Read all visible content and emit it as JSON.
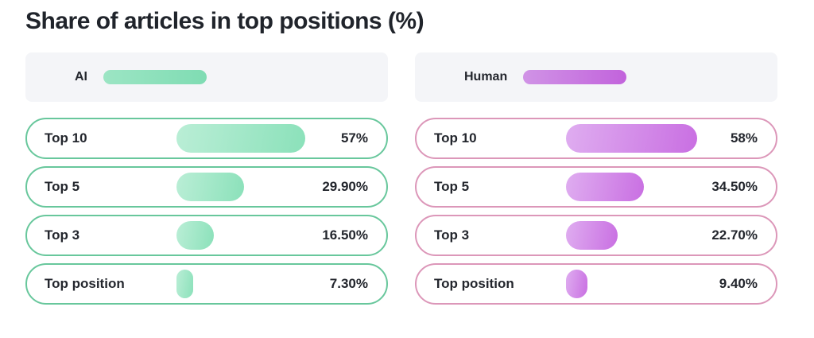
{
  "chart_data": {
    "type": "bar",
    "orientation": "horizontal",
    "title": "Share of articles in top positions (%)",
    "unit": "%",
    "categories": [
      "Top 10",
      "Top 5",
      "Top 3",
      "Top position"
    ],
    "series": [
      {
        "name": "AI",
        "values": [
          57,
          29.9,
          16.5,
          7.3
        ],
        "labels": [
          "57%",
          "29.90%",
          "16.50%",
          "7.30%"
        ]
      },
      {
        "name": "Human",
        "values": [
          58,
          34.5,
          22.7,
          9.4
        ],
        "labels": [
          "58%",
          "34.50%",
          "22.70%",
          "9.40%"
        ]
      }
    ],
    "legend_position": "top",
    "axes_visible": false
  },
  "colors": {
    "ai_bar_start": "#baeed6",
    "ai_bar_end": "#8be1ba",
    "ai_border": "#68c79c",
    "human_bar_start": "#dfadf0",
    "human_bar_end": "#c96fe2",
    "human_border": "#dc97b9",
    "legend_background": "#f4f5f8",
    "text": "#23262d",
    "page_background": "#ffffff"
  }
}
